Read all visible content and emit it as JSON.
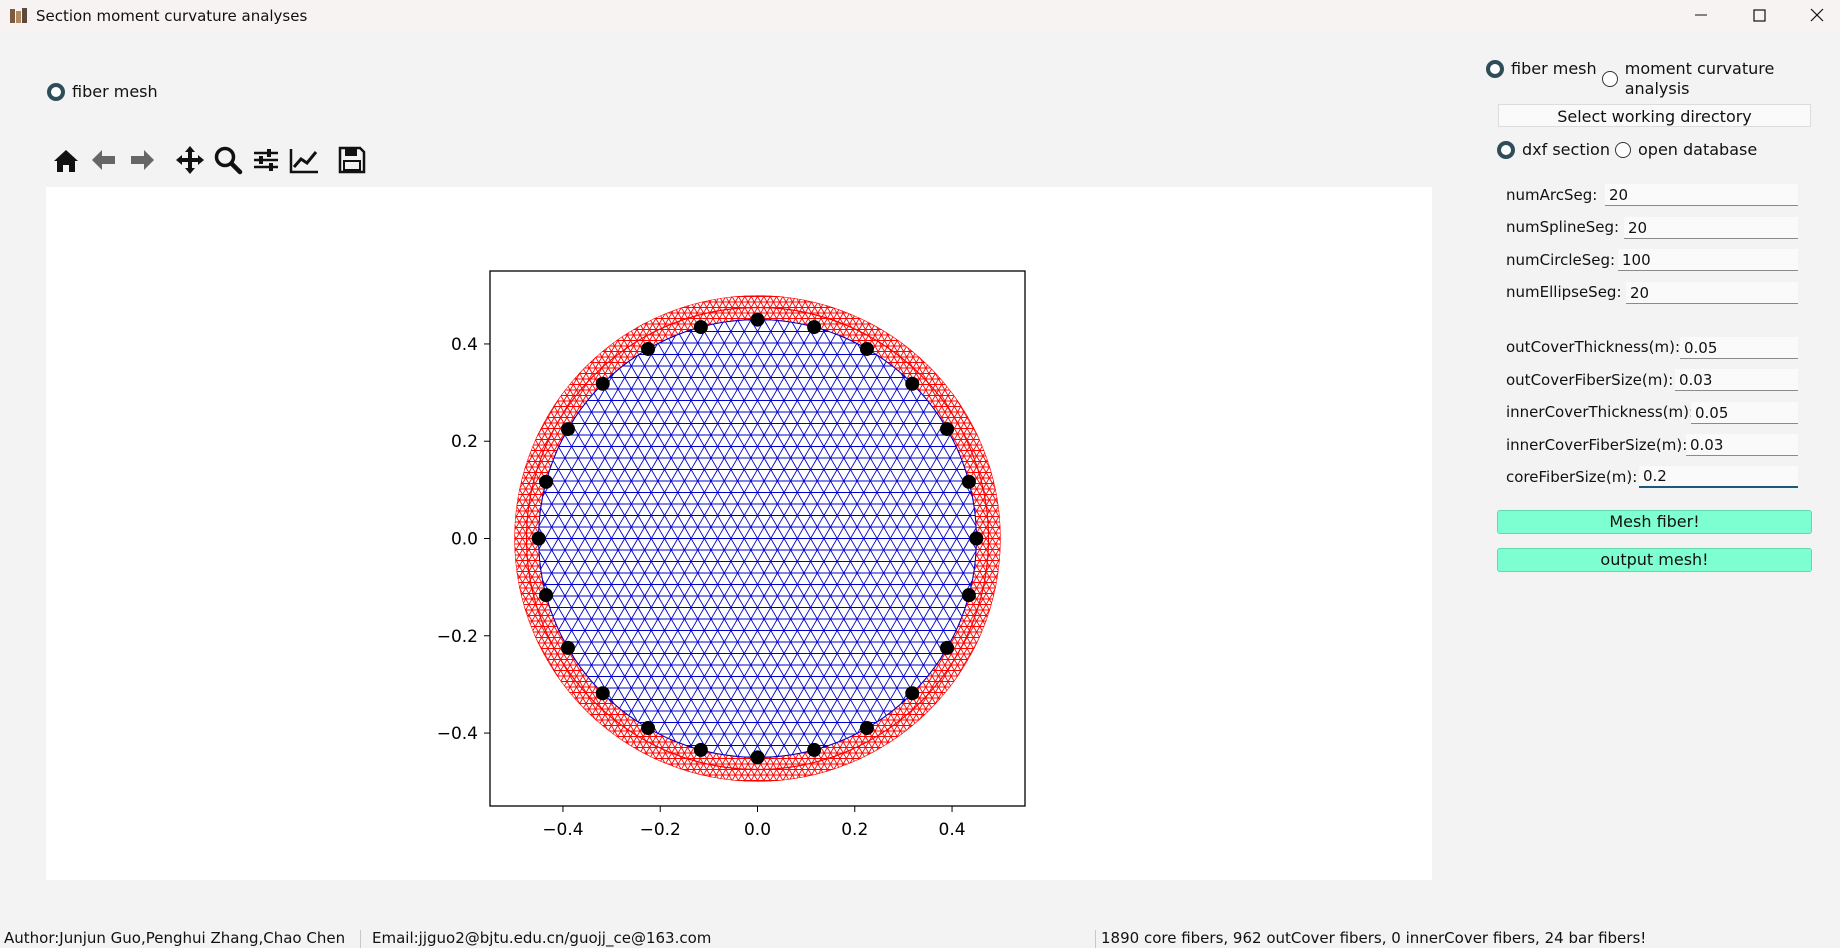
{
  "window": {
    "title": "Section moment curvature analyses"
  },
  "left_panel": {
    "mode_radio_label": "fiber mesh",
    "toolbar_icons": [
      "home-icon",
      "back-arrow-icon",
      "forward-arrow-icon",
      "pan-icon",
      "zoom-icon",
      "subplots-config-icon",
      "edit-curves-icon",
      "save-icon"
    ]
  },
  "chart_data": {
    "type": "scatter",
    "title": "",
    "xlabel": "",
    "ylabel": "",
    "xlim": [
      -0.55,
      0.55
    ],
    "ylim": [
      -0.55,
      0.55
    ],
    "x_ticks": [
      "−0.4",
      "−0.2",
      "0.0",
      "0.2",
      "0.4"
    ],
    "x_tick_values": [
      -0.4,
      -0.2,
      0.0,
      0.2,
      0.4
    ],
    "y_ticks": [
      "0.4",
      "0.2",
      "0.0",
      "−0.2",
      "−0.4"
    ],
    "y_tick_values": [
      0.4,
      0.2,
      0.0,
      -0.2,
      -0.4
    ],
    "outer_radius": 0.5,
    "cover_inner_radius": 0.45,
    "bar_ring_radius": 0.45,
    "bar_count": 24,
    "cover_color": "#ff0000",
    "core_color": "#0000cc",
    "bar_color": "#000000"
  },
  "right_panel": {
    "mode_radio": [
      {
        "label": "fiber mesh",
        "checked": true
      },
      {
        "label": "moment curvature analysis",
        "checked": false
      }
    ],
    "select_dir_label": "Select working directory",
    "source_radio": [
      {
        "label": "dxf section",
        "checked": true
      },
      {
        "label": "open database",
        "checked": false
      }
    ],
    "seg_fields": [
      {
        "label": "numArcSeg:",
        "value": "20"
      },
      {
        "label": "numSplineSeg:",
        "value": "20"
      },
      {
        "label": "numCircleSeg:",
        "value": "100"
      },
      {
        "label": "numEllipseSeg:",
        "value": "20"
      }
    ],
    "cover_fields": [
      {
        "label": "outCoverThickness(m):",
        "value": "0.05"
      },
      {
        "label": "outCoverFiberSize(m):",
        "value": "0.03"
      },
      {
        "label": "innerCoverThickness(m):",
        "value": "0.05"
      },
      {
        "label": "innerCoverFiberSize(m):",
        "value": "0.03"
      },
      {
        "label": "coreFiberSize(m):",
        "value": "0.2"
      }
    ],
    "mesh_button": "Mesh fiber!",
    "output_button": "output mesh!"
  },
  "status": {
    "authors": "Author:Junjun Guo,Penghui Zhang,Chao Chen",
    "email": "Email:jjguo2@bjtu.edu.cn/guojj_ce@163.com",
    "summary": "1890 core fibers, 962 outCover fibers, 0 innerCover fibers, 24 bar fibers!"
  }
}
